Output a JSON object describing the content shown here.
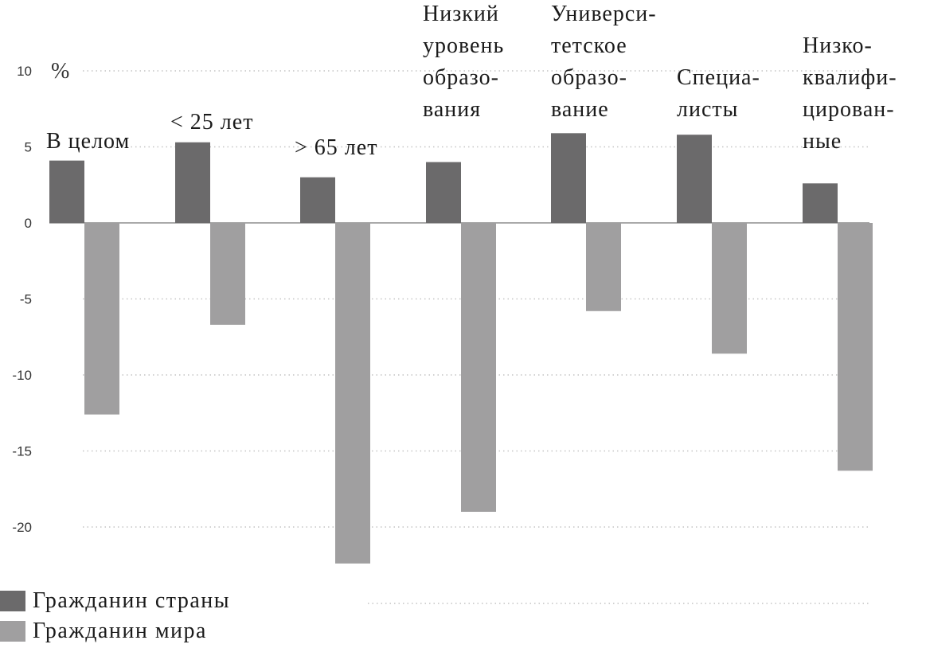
{
  "chart_data": {
    "type": "bar",
    "unit": "%",
    "categories": [
      [
        "В целом"
      ],
      [
        "< 25 лет"
      ],
      [
        "> 65 лет"
      ],
      [
        "Низкий",
        "уровень",
        "образо-",
        "вания"
      ],
      [
        "Универси-",
        "тетское",
        "образо-",
        "вание"
      ],
      [
        "Специа-",
        "листы"
      ],
      [
        "Низко-",
        "квалифи-",
        "цирован-",
        "ные"
      ]
    ],
    "series": [
      {
        "name": "Гражданин страны",
        "color": "#6b6a6b",
        "values": [
          4.1,
          5.3,
          3.0,
          4.0,
          5.9,
          5.8,
          2.6
        ]
      },
      {
        "name": "Гражданин мира",
        "color": "#a09fa0",
        "values": [
          -12.6,
          -6.7,
          -22.4,
          -19.0,
          -5.8,
          -8.6,
          -16.3
        ]
      }
    ],
    "yticks": [
      10,
      5,
      0,
      -5,
      -10,
      -15,
      -20
    ],
    "ytick_labels": [
      "10",
      "5",
      "0",
      "-5",
      "-10",
      "-15",
      "-20"
    ],
    "ylim": [
      -22.5,
      10
    ],
    "grid": "dotted horizontal",
    "legend_position": "bottom-left"
  }
}
